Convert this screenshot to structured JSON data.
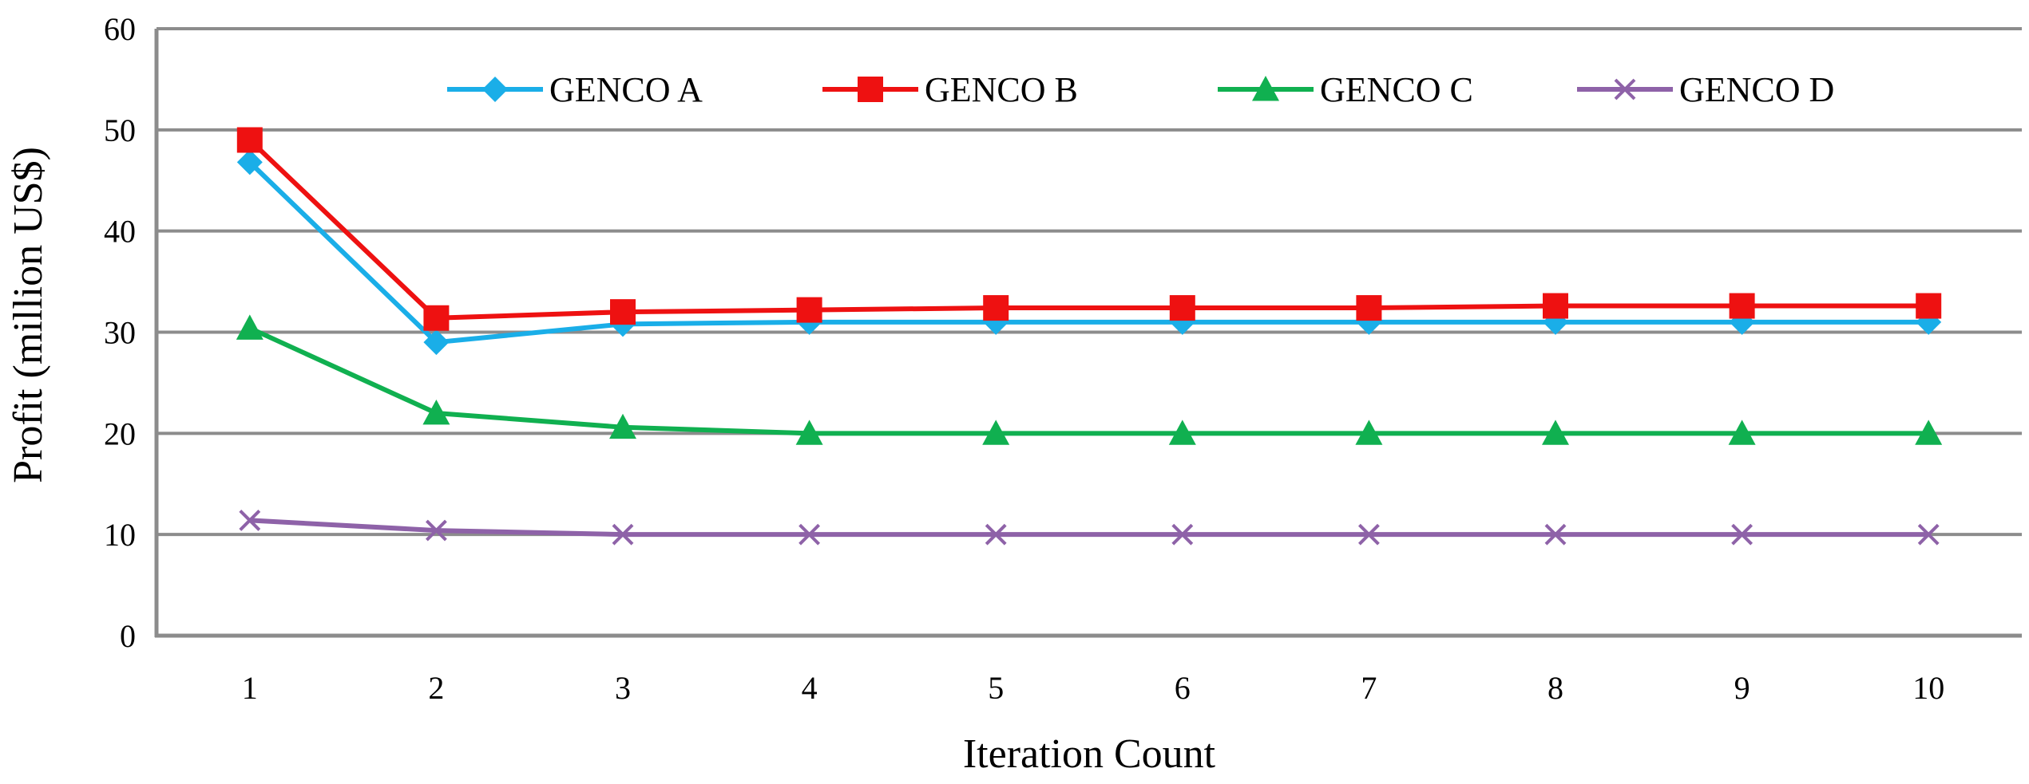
{
  "chart_data": {
    "type": "line",
    "title": "",
    "xlabel": "Iteration Count",
    "ylabel": "Profit (million US$)",
    "categories": [
      "1",
      "2",
      "3",
      "4",
      "5",
      "6",
      "7",
      "8",
      "9",
      "10"
    ],
    "ylim": [
      0,
      60
    ],
    "yticks": [
      "0",
      "10",
      "20",
      "30",
      "40",
      "50",
      "60"
    ],
    "grid": true,
    "legend_position": "top",
    "series": [
      {
        "name": "GENCO A",
        "color": "#1AAEE8",
        "marker": "diamond",
        "values": [
          46.8,
          29.0,
          30.8,
          31.0,
          31.0,
          31.0,
          31.0,
          31.0,
          31.0,
          31.0
        ]
      },
      {
        "name": "GENCO B",
        "color": "#EE1111",
        "marker": "square",
        "values": [
          49.0,
          31.4,
          32.0,
          32.2,
          32.4,
          32.4,
          32.4,
          32.6,
          32.6,
          32.6
        ]
      },
      {
        "name": "GENCO C",
        "color": "#10B050",
        "marker": "triangle",
        "values": [
          30.4,
          22.0,
          20.6,
          20.0,
          20.0,
          20.0,
          20.0,
          20.0,
          20.0,
          20.0
        ]
      },
      {
        "name": "GENCO D",
        "color": "#8E62A8",
        "marker": "x",
        "values": [
          11.4,
          10.4,
          10.0,
          10.0,
          10.0,
          10.0,
          10.0,
          10.0,
          10.0,
          10.0
        ]
      }
    ]
  }
}
